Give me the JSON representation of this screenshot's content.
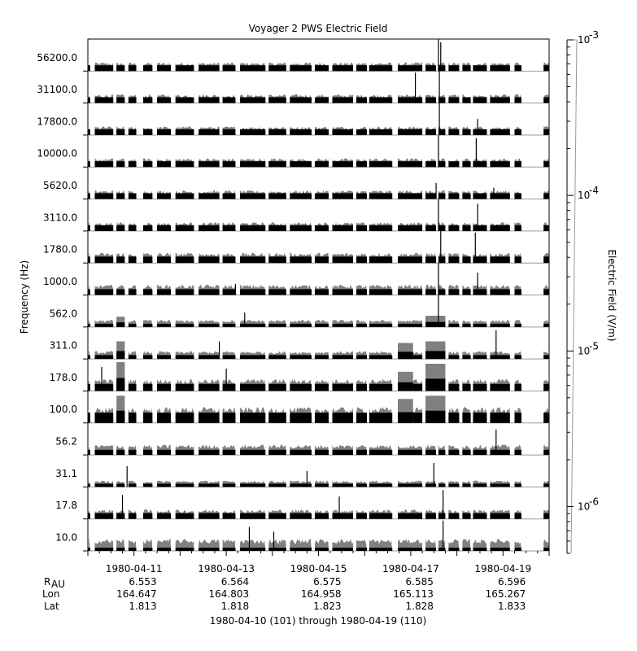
{
  "chart_data": {
    "type": "bar",
    "title": "Voyager 2 PWS Electric Field",
    "ylabel": "Frequency (Hz)",
    "colorbar": {
      "label": "Electric Field (V/m)",
      "scale": "log",
      "range": [
        5e-07,
        0.001
      ],
      "ticks": [
        {
          "base": "10",
          "exp": "-3",
          "value": 0.001
        },
        {
          "base": "10",
          "exp": "-4",
          "value": 0.0001
        },
        {
          "base": "10",
          "exp": "-5",
          "value": 1e-05
        },
        {
          "base": "10",
          "exp": "-6",
          "value": 1e-06
        }
      ]
    },
    "channels": [
      "56200.0",
      "31100.0",
      "17800.0",
      "10000.0",
      "5620.0",
      "3110.0",
      "1780.0",
      "1000.0",
      "562.0",
      "311.0",
      "178.0",
      "100.0",
      "56.2",
      "31.1",
      "17.8",
      "10.0"
    ],
    "xlim": [
      "1980-04-10T00:00",
      "1980-04-20T00:00"
    ],
    "x_ticks": [
      "1980-04-11",
      "1980-04-13",
      "1980-04-15",
      "1980-04-17",
      "1980-04-19"
    ],
    "ephemeris": {
      "row_labels": {
        "r_main": "R",
        "r_sub": "AU",
        "lon": "Lon",
        "lat": "Lat"
      },
      "R": [
        "6.553",
        "6.564",
        "6.575",
        "6.585",
        "6.596"
      ],
      "Lon": [
        "164.647",
        "164.803",
        "164.958",
        "165.113",
        "165.267"
      ],
      "Lat": [
        "1.813",
        "1.818",
        "1.823",
        "1.828",
        "1.833"
      ]
    },
    "footer": "1980-04-10 (101) through 1980-04-19 (110)",
    "series_colors": {
      "peak": "#808080",
      "average": "#000000"
    },
    "data_intervals_days": [
      [
        0.0,
        0.05
      ],
      [
        0.15,
        0.55
      ],
      [
        0.62,
        0.8
      ],
      [
        0.88,
        1.05
      ],
      [
        1.2,
        1.4
      ],
      [
        1.5,
        1.8
      ],
      [
        1.9,
        2.3
      ],
      [
        2.4,
        2.85
      ],
      [
        2.92,
        3.2
      ],
      [
        3.3,
        3.85
      ],
      [
        3.92,
        4.3
      ],
      [
        4.38,
        4.85
      ],
      [
        4.92,
        5.22
      ],
      [
        5.3,
        5.75
      ],
      [
        5.82,
        6.05
      ],
      [
        6.1,
        6.6
      ],
      [
        6.72,
        7.25
      ],
      [
        7.32,
        7.55
      ],
      [
        7.6,
        7.75
      ],
      [
        7.82,
        8.05
      ],
      [
        8.12,
        8.3
      ],
      [
        8.35,
        8.65
      ],
      [
        8.72,
        9.15
      ],
      [
        9.25,
        9.4
      ],
      [
        9.88,
        10.0
      ]
    ],
    "channel_levels": [
      {
        "avg": 0.18,
        "peak": 0.22
      },
      {
        "avg": 0.18,
        "peak": 0.22
      },
      {
        "avg": 0.18,
        "peak": 0.22
      },
      {
        "avg": 0.18,
        "peak": 0.22
      },
      {
        "avg": 0.18,
        "peak": 0.22
      },
      {
        "avg": 0.18,
        "peak": 0.22
      },
      {
        "avg": 0.2,
        "peak": 0.26
      },
      {
        "avg": 0.18,
        "peak": 0.26
      },
      {
        "avg": 0.1,
        "peak": 0.18
      },
      {
        "avg": 0.12,
        "peak": 0.2
      },
      {
        "avg": 0.22,
        "peak": 0.3
      },
      {
        "avg": 0.32,
        "peak": 0.4
      },
      {
        "avg": 0.16,
        "peak": 0.26
      },
      {
        "avg": 0.1,
        "peak": 0.16
      },
      {
        "avg": 0.18,
        "peak": 0.24
      },
      {
        "avg": 0.1,
        "peak": 0.3
      }
    ],
    "bursts": [
      {
        "channel": 8,
        "start": 0.62,
        "end": 0.8,
        "peak": 0.32
      },
      {
        "channel": 9,
        "start": 0.62,
        "end": 0.8,
        "peak": 0.55
      },
      {
        "channel": 10,
        "start": 0.62,
        "end": 0.8,
        "peak": 0.9
      },
      {
        "channel": 11,
        "start": 0.62,
        "end": 0.8,
        "peak": 0.85
      },
      {
        "channel": 9,
        "start": 6.72,
        "end": 7.05,
        "peak": 0.5
      },
      {
        "channel": 10,
        "start": 6.72,
        "end": 7.05,
        "peak": 0.6
      },
      {
        "channel": 11,
        "start": 6.72,
        "end": 7.05,
        "peak": 0.75
      },
      {
        "channel": 8,
        "start": 7.32,
        "end": 7.75,
        "peak": 0.35
      },
      {
        "channel": 9,
        "start": 7.32,
        "end": 7.75,
        "peak": 0.55
      },
      {
        "channel": 10,
        "start": 7.32,
        "end": 7.75,
        "peak": 0.85
      },
      {
        "channel": 11,
        "start": 7.32,
        "end": 7.75,
        "peak": 0.85
      }
    ],
    "spikes": [
      {
        "channel": 0,
        "day": 7.6,
        "h": 1.0
      },
      {
        "channel": 0,
        "day": 7.65,
        "h": 0.9
      },
      {
        "channel": 1,
        "day": 7.1,
        "h": 0.95
      },
      {
        "channel": 1,
        "day": 7.62,
        "h": 1.0
      },
      {
        "channel": 2,
        "day": 7.62,
        "h": 1.0
      },
      {
        "channel": 2,
        "day": 8.45,
        "h": 0.5
      },
      {
        "channel": 3,
        "day": 7.6,
        "h": 1.0
      },
      {
        "channel": 3,
        "day": 8.42,
        "h": 0.9
      },
      {
        "channel": 4,
        "day": 7.55,
        "h": 0.5
      },
      {
        "channel": 4,
        "day": 8.8,
        "h": 0.35
      },
      {
        "channel": 5,
        "day": 7.6,
        "h": 1.0
      },
      {
        "channel": 5,
        "day": 8.45,
        "h": 0.85
      },
      {
        "channel": 6,
        "day": 7.65,
        "h": 1.0
      },
      {
        "channel": 6,
        "day": 8.4,
        "h": 0.95
      },
      {
        "channel": 7,
        "day": 7.6,
        "h": 1.0
      },
      {
        "channel": 7,
        "day": 8.45,
        "h": 0.7
      },
      {
        "channel": 7,
        "day": 3.2,
        "h": 0.35
      },
      {
        "channel": 8,
        "day": 7.6,
        "h": 1.0
      },
      {
        "channel": 8,
        "day": 3.4,
        "h": 0.45
      },
      {
        "channel": 9,
        "day": 8.85,
        "h": 0.9
      },
      {
        "channel": 9,
        "day": 2.85,
        "h": 0.55
      },
      {
        "channel": 10,
        "day": 3.0,
        "h": 0.7
      },
      {
        "channel": 10,
        "day": 0.3,
        "h": 0.75
      },
      {
        "channel": 12,
        "day": 8.85,
        "h": 0.8
      },
      {
        "channel": 13,
        "day": 0.85,
        "h": 0.65
      },
      {
        "channel": 13,
        "day": 4.75,
        "h": 0.5
      },
      {
        "channel": 13,
        "day": 7.5,
        "h": 0.75
      },
      {
        "channel": 14,
        "day": 0.75,
        "h": 0.75
      },
      {
        "channel": 14,
        "day": 5.45,
        "h": 0.7
      },
      {
        "channel": 14,
        "day": 7.7,
        "h": 0.9
      },
      {
        "channel": 15,
        "day": 3.5,
        "h": 0.75
      },
      {
        "channel": 15,
        "day": 7.7,
        "h": 0.95
      },
      {
        "channel": 15,
        "day": 4.03,
        "h": 0.6
      }
    ]
  }
}
